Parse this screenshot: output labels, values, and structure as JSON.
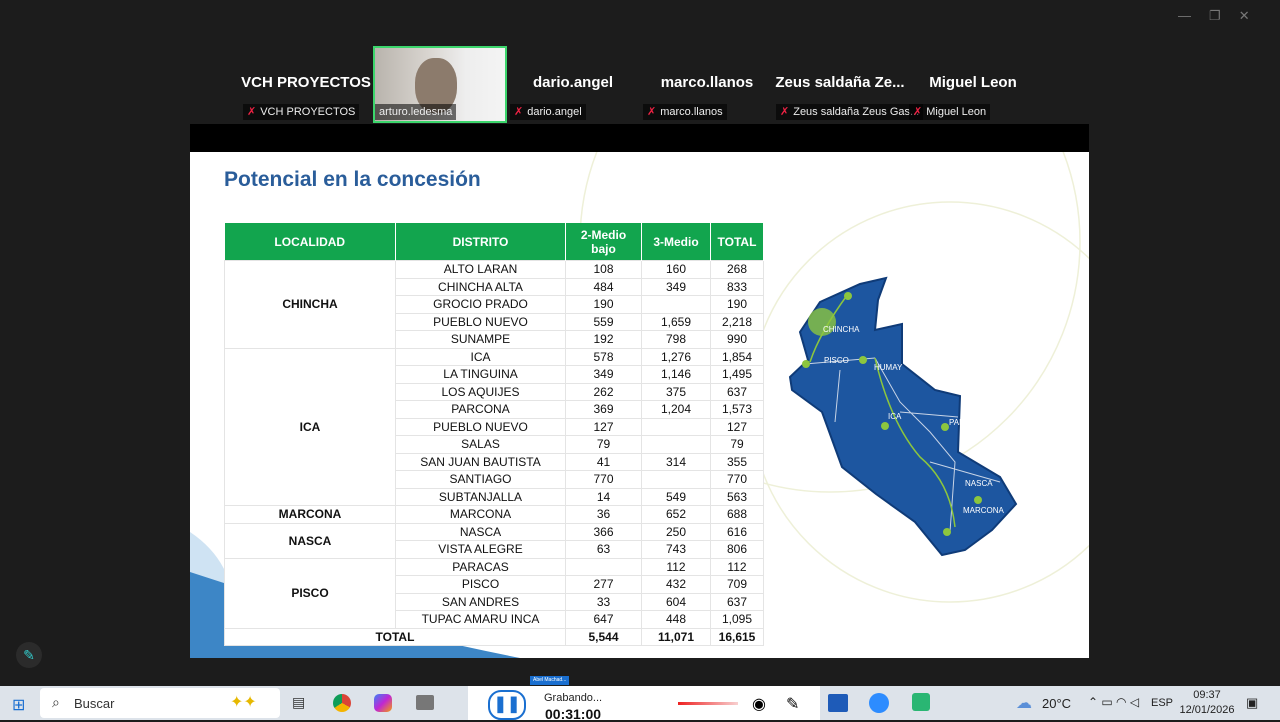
{
  "participants": [
    {
      "name": "VCH PROYECTOS",
      "label": "VCH PROYECTOS"
    },
    {
      "label": "arturo.ledesma"
    },
    {
      "name": "dario.angel",
      "label": "dario.angel"
    },
    {
      "name": "marco.llanos",
      "label": "marco.llanos"
    },
    {
      "name": "Zeus saldaña Ze...",
      "label": "Zeus saldaña Zeus Gas..."
    },
    {
      "name": "Miguel Leon",
      "label": "Miguel Leon"
    }
  ],
  "slide": {
    "title": "Potencial en la concesión",
    "table": {
      "headers": [
        "LOCALIDAD",
        "DISTRITO",
        "2-Medio bajo",
        "3-Medio",
        "TOTAL"
      ],
      "groups": [
        {
          "localidad": "CHINCHA",
          "rows": [
            [
              "ALTO LARAN",
              "108",
              "160",
              "268"
            ],
            [
              "CHINCHA ALTA",
              "484",
              "349",
              "833"
            ],
            [
              "GROCIO PRADO",
              "190",
              null,
              "190"
            ],
            [
              "PUEBLO NUEVO",
              "559",
              "1,659",
              "2,218"
            ],
            [
              "SUNAMPE",
              "192",
              "798",
              "990"
            ]
          ]
        },
        {
          "localidad": "ICA",
          "rows": [
            [
              "ICA",
              "578",
              "1,276",
              "1,854"
            ],
            [
              "LA TINGUINA",
              "349",
              "1,146",
              "1,495"
            ],
            [
              "LOS AQUIJES",
              "262",
              "375",
              "637"
            ],
            [
              "PARCONA",
              "369",
              "1,204",
              "1,573"
            ],
            [
              "PUEBLO NUEVO",
              "127",
              null,
              "127"
            ],
            [
              "SALAS",
              "79",
              null,
              "79"
            ],
            [
              "SAN JUAN BAUTISTA",
              "41",
              "314",
              "355"
            ],
            [
              "SANTIAGO",
              "770",
              null,
              "770"
            ],
            [
              "SUBTANJALLA",
              "14",
              "549",
              "563"
            ]
          ]
        },
        {
          "localidad": "MARCONA",
          "rows": [
            [
              "MARCONA",
              "36",
              "652",
              "688"
            ]
          ]
        },
        {
          "localidad": "NASCA",
          "rows": [
            [
              "NASCA",
              "366",
              "250",
              "616"
            ],
            [
              "VISTA ALEGRE",
              "63",
              "743",
              "806"
            ]
          ]
        },
        {
          "localidad": "PISCO",
          "rows": [
            [
              "PARACAS",
              null,
              "112",
              "112"
            ],
            [
              "PISCO",
              "277",
              "432",
              "709"
            ],
            [
              "SAN ANDRES",
              "33",
              "604",
              "637"
            ],
            [
              "TUPAC AMARU INCA",
              "647",
              "448",
              "1,095"
            ]
          ]
        }
      ],
      "total": [
        "TOTAL",
        "5,544",
        "11,071",
        "16,615"
      ]
    },
    "map_labels": [
      "CHINCHA",
      "PISCO",
      "HUMAY",
      "ICA",
      "PALPA",
      "NASCA",
      "MARCONA"
    ]
  },
  "recorder": {
    "user": "Abel Machad...",
    "status": "Grabando...",
    "time": "00:31:00"
  },
  "taskbar": {
    "search": "Buscar",
    "weather": "20°C",
    "language": "ESP",
    "time": "09:37",
    "date": "12/01/2026"
  }
}
